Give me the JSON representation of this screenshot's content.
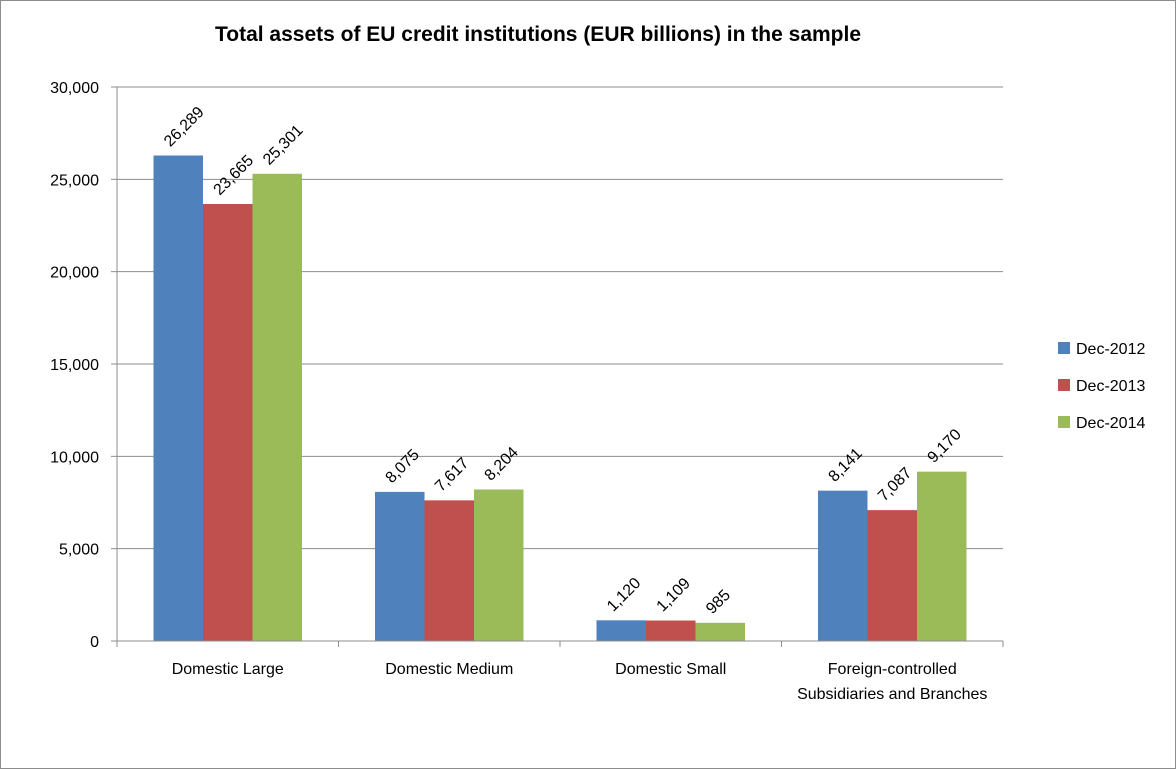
{
  "chart_data": {
    "type": "bar",
    "title": "Total assets of EU credit institutions (EUR billions) in the sample",
    "xlabel": "",
    "ylabel": "",
    "ylim": [
      0,
      30000
    ],
    "y_ticks": [
      0,
      5000,
      10000,
      15000,
      20000,
      25000,
      30000
    ],
    "y_tick_labels": [
      "0",
      "5,000",
      "10,000",
      "15,000",
      "20,000",
      "25,000",
      "30,000"
    ],
    "grid": true,
    "legend_position": "right",
    "categories": [
      [
        "Domestic Large"
      ],
      [
        "Domestic Medium"
      ],
      [
        "Domestic Small"
      ],
      [
        "Foreign-controlled",
        "Subsidiaries and Branches"
      ]
    ],
    "series": [
      {
        "name": "Dec-2012",
        "color": "#4f81bd",
        "values": [
          26289,
          8075,
          1120,
          8141
        ],
        "labels": [
          "26,289",
          "8,075",
          "1,120",
          "8,141"
        ]
      },
      {
        "name": "Dec-2013",
        "color": "#c0504d",
        "values": [
          23665,
          7617,
          1109,
          7087
        ],
        "labels": [
          "23,665",
          "7,617",
          "1,109",
          "7,087"
        ]
      },
      {
        "name": "Dec-2014",
        "color": "#9bbb59",
        "values": [
          25301,
          8204,
          985,
          9170
        ],
        "labels": [
          "25,301",
          "8,204",
          "985",
          "9,170"
        ]
      }
    ]
  },
  "colors": {
    "gridline": "#8c8c8c",
    "axis": "#8c8c8c",
    "frame": "#8c8c8c"
  }
}
